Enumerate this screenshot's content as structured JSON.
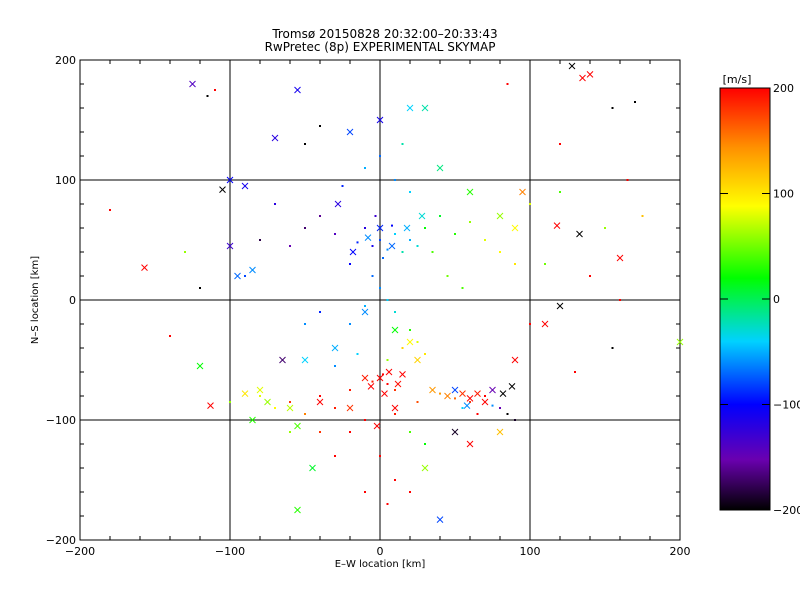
{
  "chart_data": {
    "type": "scatter",
    "title": "Tromsø 20150828 20:32:00–20:33:43",
    "subtitle": "RwPretec (8p) EXPERIMENTAL SKYMAP",
    "xlabel": "E–W location [km]",
    "ylabel": "N–S location [km]",
    "xlim": [
      -200,
      200
    ],
    "ylim": [
      -200,
      200
    ],
    "xticks": [
      "−200",
      "−100",
      "0",
      "100",
      "200"
    ],
    "yticks": [
      "200",
      "100",
      "0",
      "−100",
      "−200"
    ],
    "grid": true,
    "grid_lines": [
      -100,
      0,
      100
    ],
    "colorbar": {
      "label": "[m/s]",
      "range": [
        -200,
        200
      ],
      "ticks": [
        "200",
        "100",
        "0",
        "−100",
        "−200"
      ],
      "colormap": [
        "#000000",
        "#6a00b0",
        "#0000ff",
        "#00d2ff",
        "#00ff00",
        "#ffff00",
        "#ff9000",
        "#ff0000"
      ]
    },
    "markers": [
      "dot",
      "cross"
    ],
    "points": [
      {
        "x": 0,
        "y": 50,
        "v": -80,
        "m": "dot"
      },
      {
        "x": -5,
        "y": 45,
        "v": -110,
        "m": "dot"
      },
      {
        "x": 5,
        "y": 42,
        "v": -60,
        "m": "dot"
      },
      {
        "x": 10,
        "y": 55,
        "v": -40,
        "m": "dot"
      },
      {
        "x": -10,
        "y": 60,
        "v": -120,
        "m": "dot"
      },
      {
        "x": 15,
        "y": 40,
        "v": -20,
        "m": "dot"
      },
      {
        "x": 20,
        "y": 50,
        "v": -50,
        "m": "dot"
      },
      {
        "x": -15,
        "y": 48,
        "v": -90,
        "m": "dot"
      },
      {
        "x": 2,
        "y": 35,
        "v": -70,
        "m": "dot"
      },
      {
        "x": 8,
        "y": 62,
        "v": -100,
        "m": "dot"
      },
      {
        "x": -3,
        "y": 70,
        "v": -130,
        "m": "dot"
      },
      {
        "x": 25,
        "y": 45,
        "v": -30,
        "m": "dot"
      },
      {
        "x": 30,
        "y": 60,
        "v": 20,
        "m": "dot"
      },
      {
        "x": 35,
        "y": 40,
        "v": 40,
        "m": "dot"
      },
      {
        "x": -20,
        "y": 30,
        "v": -100,
        "m": "dot"
      },
      {
        "x": -30,
        "y": 55,
        "v": -140,
        "m": "dot"
      },
      {
        "x": -40,
        "y": 70,
        "v": -160,
        "m": "dot"
      },
      {
        "x": -50,
        "y": 60,
        "v": -170,
        "m": "dot"
      },
      {
        "x": -60,
        "y": 45,
        "v": -150,
        "m": "dot"
      },
      {
        "x": -70,
        "y": 80,
        "v": -120,
        "m": "dot"
      },
      {
        "x": -80,
        "y": 50,
        "v": -180,
        "m": "dot"
      },
      {
        "x": -90,
        "y": 20,
        "v": -80,
        "m": "dot"
      },
      {
        "x": 40,
        "y": 70,
        "v": 10,
        "m": "dot"
      },
      {
        "x": 50,
        "y": 55,
        "v": 30,
        "m": "dot"
      },
      {
        "x": 60,
        "y": 65,
        "v": 60,
        "m": "dot"
      },
      {
        "x": 70,
        "y": 50,
        "v": 80,
        "m": "dot"
      },
      {
        "x": 80,
        "y": 40,
        "v": 90,
        "m": "dot"
      },
      {
        "x": 90,
        "y": 30,
        "v": 100,
        "m": "dot"
      },
      {
        "x": 45,
        "y": 20,
        "v": 50,
        "m": "dot"
      },
      {
        "x": 55,
        "y": 10,
        "v": 40,
        "m": "dot"
      },
      {
        "x": 10,
        "y": 100,
        "v": -60,
        "m": "dot"
      },
      {
        "x": 0,
        "y": 120,
        "v": -70,
        "m": "dot"
      },
      {
        "x": -10,
        "y": 110,
        "v": -50,
        "m": "dot"
      },
      {
        "x": 20,
        "y": 90,
        "v": -40,
        "m": "dot"
      },
      {
        "x": -25,
        "y": 95,
        "v": -90,
        "m": "dot"
      },
      {
        "x": 15,
        "y": 130,
        "v": -20,
        "m": "dot"
      },
      {
        "x": -5,
        "y": 20,
        "v": -70,
        "m": "dot"
      },
      {
        "x": 0,
        "y": 10,
        "v": -60,
        "m": "dot"
      },
      {
        "x": 5,
        "y": 0,
        "v": -40,
        "m": "dot"
      },
      {
        "x": -10,
        "y": -5,
        "v": -50,
        "m": "dot"
      },
      {
        "x": 10,
        "y": -10,
        "v": -30,
        "m": "dot"
      },
      {
        "x": -20,
        "y": -20,
        "v": -60,
        "m": "dot"
      },
      {
        "x": 20,
        "y": -25,
        "v": 30,
        "m": "dot"
      },
      {
        "x": 25,
        "y": -35,
        "v": 80,
        "m": "dot"
      },
      {
        "x": 15,
        "y": -40,
        "v": 110,
        "m": "dot"
      },
      {
        "x": 30,
        "y": -45,
        "v": 100,
        "m": "dot"
      },
      {
        "x": 5,
        "y": -50,
        "v": 60,
        "m": "dot"
      },
      {
        "x": -15,
        "y": -45,
        "v": -40,
        "m": "dot"
      },
      {
        "x": -30,
        "y": -55,
        "v": -60,
        "m": "dot"
      },
      {
        "x": -40,
        "y": -10,
        "v": -90,
        "m": "dot"
      },
      {
        "x": -50,
        "y": -20,
        "v": -60,
        "m": "dot"
      },
      {
        "x": 0,
        "y": -65,
        "v": 190,
        "m": "dot"
      },
      {
        "x": 5,
        "y": -70,
        "v": 200,
        "m": "dot"
      },
      {
        "x": -5,
        "y": -68,
        "v": 190,
        "m": "dot"
      },
      {
        "x": 10,
        "y": -75,
        "v": 180,
        "m": "dot"
      },
      {
        "x": 2,
        "y": -62,
        "v": 200,
        "m": "dot"
      },
      {
        "x": -20,
        "y": -75,
        "v": 190,
        "m": "dot"
      },
      {
        "x": -40,
        "y": -80,
        "v": 200,
        "m": "dot"
      },
      {
        "x": -60,
        "y": -85,
        "v": 180,
        "m": "dot"
      },
      {
        "x": -80,
        "y": -80,
        "v": 80,
        "m": "dot"
      },
      {
        "x": -100,
        "y": -85,
        "v": 60,
        "m": "dot"
      },
      {
        "x": -70,
        "y": -90,
        "v": 90,
        "m": "dot"
      },
      {
        "x": -50,
        "y": -95,
        "v": 150,
        "m": "dot"
      },
      {
        "x": -30,
        "y": -90,
        "v": 190,
        "m": "dot"
      },
      {
        "x": -10,
        "y": -100,
        "v": 200,
        "m": "dot"
      },
      {
        "x": 10,
        "y": -95,
        "v": 190,
        "m": "dot"
      },
      {
        "x": 25,
        "y": -85,
        "v": 170,
        "m": "dot"
      },
      {
        "x": 40,
        "y": -78,
        "v": 140,
        "m": "dot"
      },
      {
        "x": 50,
        "y": -82,
        "v": 160,
        "m": "dot"
      },
      {
        "x": 60,
        "y": -85,
        "v": 180,
        "m": "dot"
      },
      {
        "x": 70,
        "y": -80,
        "v": 200,
        "m": "dot"
      },
      {
        "x": 75,
        "y": -88,
        "v": -60,
        "m": "dot"
      },
      {
        "x": 80,
        "y": -90,
        "v": -150,
        "m": "dot"
      },
      {
        "x": 85,
        "y": -95,
        "v": -200,
        "m": "dot"
      },
      {
        "x": 90,
        "y": -100,
        "v": -190,
        "m": "dot"
      },
      {
        "x": 65,
        "y": -95,
        "v": 200,
        "m": "dot"
      },
      {
        "x": 55,
        "y": -90,
        "v": -40,
        "m": "dot"
      },
      {
        "x": -20,
        "y": -110,
        "v": 200,
        "m": "dot"
      },
      {
        "x": -40,
        "y": -110,
        "v": 180,
        "m": "dot"
      },
      {
        "x": -60,
        "y": -110,
        "v": 60,
        "m": "dot"
      },
      {
        "x": 20,
        "y": -110,
        "v": 40,
        "m": "dot"
      },
      {
        "x": 30,
        "y": -120,
        "v": 20,
        "m": "dot"
      },
      {
        "x": 0,
        "y": -130,
        "v": 200,
        "m": "dot"
      },
      {
        "x": -30,
        "y": -130,
        "v": 200,
        "m": "dot"
      },
      {
        "x": 10,
        "y": -150,
        "v": 200,
        "m": "dot"
      },
      {
        "x": 5,
        "y": -170,
        "v": 200,
        "m": "dot"
      },
      {
        "x": 20,
        "y": -160,
        "v": 200,
        "m": "dot"
      },
      {
        "x": -10,
        "y": -160,
        "v": 200,
        "m": "dot"
      },
      {
        "x": -120,
        "y": 10,
        "v": -200,
        "m": "dot"
      },
      {
        "x": -140,
        "y": -30,
        "v": 200,
        "m": "dot"
      },
      {
        "x": -130,
        "y": 40,
        "v": 60,
        "m": "dot"
      },
      {
        "x": -180,
        "y": 75,
        "v": 200,
        "m": "dot"
      },
      {
        "x": -110,
        "y": 175,
        "v": 200,
        "m": "dot"
      },
      {
        "x": -115,
        "y": 170,
        "v": -200,
        "m": "dot"
      },
      {
        "x": -50,
        "y": 130,
        "v": -200,
        "m": "dot"
      },
      {
        "x": -40,
        "y": 145,
        "v": -200,
        "m": "dot"
      },
      {
        "x": 100,
        "y": 80,
        "v": 80,
        "m": "dot"
      },
      {
        "x": 110,
        "y": 30,
        "v": 50,
        "m": "dot"
      },
      {
        "x": 120,
        "y": 90,
        "v": 40,
        "m": "dot"
      },
      {
        "x": 150,
        "y": 60,
        "v": 60,
        "m": "dot"
      },
      {
        "x": 155,
        "y": 160,
        "v": -200,
        "m": "dot"
      },
      {
        "x": 170,
        "y": 165,
        "v": -200,
        "m": "dot"
      },
      {
        "x": 140,
        "y": 20,
        "v": 200,
        "m": "dot"
      },
      {
        "x": 165,
        "y": 100,
        "v": 200,
        "m": "dot"
      },
      {
        "x": 175,
        "y": 70,
        "v": 120,
        "m": "dot"
      },
      {
        "x": 160,
        "y": 0,
        "v": 200,
        "m": "dot"
      },
      {
        "x": 155,
        "y": -40,
        "v": -200,
        "m": "dot"
      },
      {
        "x": 130,
        "y": -60,
        "v": 200,
        "m": "dot"
      },
      {
        "x": 100,
        "y": -20,
        "v": 200,
        "m": "dot"
      },
      {
        "x": 120,
        "y": 130,
        "v": 200,
        "m": "dot"
      },
      {
        "x": 85,
        "y": 180,
        "v": 200,
        "m": "dot"
      },
      {
        "x": 0,
        "y": 60,
        "v": -90,
        "m": "cross"
      },
      {
        "x": 8,
        "y": 45,
        "v": -70,
        "m": "cross"
      },
      {
        "x": -8,
        "y": 52,
        "v": -60,
        "m": "cross"
      },
      {
        "x": 18,
        "y": 60,
        "v": -50,
        "m": "cross"
      },
      {
        "x": -18,
        "y": 40,
        "v": -100,
        "m": "cross"
      },
      {
        "x": 28,
        "y": 70,
        "v": -30,
        "m": "cross"
      },
      {
        "x": -28,
        "y": 80,
        "v": -120,
        "m": "cross"
      },
      {
        "x": 0,
        "y": 150,
        "v": -110,
        "m": "cross"
      },
      {
        "x": -20,
        "y": 140,
        "v": -80,
        "m": "cross"
      },
      {
        "x": 20,
        "y": 160,
        "v": -40,
        "m": "cross"
      },
      {
        "x": -70,
        "y": 135,
        "v": -120,
        "m": "cross"
      },
      {
        "x": -90,
        "y": 95,
        "v": -110,
        "m": "cross"
      },
      {
        "x": -100,
        "y": 45,
        "v": -130,
        "m": "cross"
      },
      {
        "x": -95,
        "y": 20,
        "v": -70,
        "m": "cross"
      },
      {
        "x": -85,
        "y": 25,
        "v": -60,
        "m": "cross"
      },
      {
        "x": -125,
        "y": 180,
        "v": -140,
        "m": "cross"
      },
      {
        "x": -55,
        "y": 175,
        "v": -110,
        "m": "cross"
      },
      {
        "x": 30,
        "y": 160,
        "v": -20,
        "m": "cross"
      },
      {
        "x": 40,
        "y": 110,
        "v": -10,
        "m": "cross"
      },
      {
        "x": 60,
        "y": 90,
        "v": 30,
        "m": "cross"
      },
      {
        "x": 80,
        "y": 70,
        "v": 60,
        "m": "cross"
      },
      {
        "x": 90,
        "y": 60,
        "v": 90,
        "m": "cross"
      },
      {
        "x": -10,
        "y": -10,
        "v": -60,
        "m": "cross"
      },
      {
        "x": 10,
        "y": -25,
        "v": 20,
        "m": "cross"
      },
      {
        "x": 20,
        "y": -35,
        "v": 90,
        "m": "cross"
      },
      {
        "x": 25,
        "y": -50,
        "v": 110,
        "m": "cross"
      },
      {
        "x": -30,
        "y": -40,
        "v": -50,
        "m": "cross"
      },
      {
        "x": -50,
        "y": -50,
        "v": -40,
        "m": "cross"
      },
      {
        "x": -65,
        "y": -50,
        "v": -170,
        "m": "cross"
      },
      {
        "x": 0,
        "y": -65,
        "v": 200,
        "m": "cross"
      },
      {
        "x": 6,
        "y": -60,
        "v": 200,
        "m": "cross"
      },
      {
        "x": -6,
        "y": -72,
        "v": 200,
        "m": "cross"
      },
      {
        "x": 12,
        "y": -70,
        "v": 195,
        "m": "cross"
      },
      {
        "x": 3,
        "y": -78,
        "v": 200,
        "m": "cross"
      },
      {
        "x": -10,
        "y": -65,
        "v": 190,
        "m": "cross"
      },
      {
        "x": 15,
        "y": -62,
        "v": 200,
        "m": "cross"
      },
      {
        "x": 35,
        "y": -75,
        "v": 140,
        "m": "cross"
      },
      {
        "x": 45,
        "y": -80,
        "v": 150,
        "m": "cross"
      },
      {
        "x": 55,
        "y": -78,
        "v": 180,
        "m": "cross"
      },
      {
        "x": 60,
        "y": -82,
        "v": 200,
        "m": "cross"
      },
      {
        "x": 65,
        "y": -78,
        "v": 190,
        "m": "cross"
      },
      {
        "x": 70,
        "y": -85,
        "v": 200,
        "m": "cross"
      },
      {
        "x": 50,
        "y": -75,
        "v": -80,
        "m": "cross"
      },
      {
        "x": 58,
        "y": -88,
        "v": -60,
        "m": "cross"
      },
      {
        "x": 75,
        "y": -75,
        "v": -150,
        "m": "cross"
      },
      {
        "x": 82,
        "y": -78,
        "v": -200,
        "m": "cross"
      },
      {
        "x": 88,
        "y": -72,
        "v": -200,
        "m": "cross"
      },
      {
        "x": -80,
        "y": -75,
        "v": 80,
        "m": "cross"
      },
      {
        "x": -90,
        "y": -78,
        "v": 100,
        "m": "cross"
      },
      {
        "x": -75,
        "y": -85,
        "v": 60,
        "m": "cross"
      },
      {
        "x": -60,
        "y": -90,
        "v": 70,
        "m": "cross"
      },
      {
        "x": -40,
        "y": -85,
        "v": 200,
        "m": "cross"
      },
      {
        "x": -20,
        "y": -90,
        "v": 180,
        "m": "cross"
      },
      {
        "x": -2,
        "y": -105,
        "v": 200,
        "m": "cross"
      },
      {
        "x": 10,
        "y": -90,
        "v": 200,
        "m": "cross"
      },
      {
        "x": -55,
        "y": -105,
        "v": 40,
        "m": "cross"
      },
      {
        "x": -85,
        "y": -100,
        "v": 30,
        "m": "cross"
      },
      {
        "x": -45,
        "y": -140,
        "v": 10,
        "m": "cross"
      },
      {
        "x": -55,
        "y": -175,
        "v": 30,
        "m": "cross"
      },
      {
        "x": 40,
        "y": -183,
        "v": -80,
        "m": "cross"
      },
      {
        "x": 30,
        "y": -140,
        "v": 60,
        "m": "cross"
      },
      {
        "x": 50,
        "y": -110,
        "v": -190,
        "m": "cross"
      },
      {
        "x": 60,
        "y": -120,
        "v": 200,
        "m": "cross"
      },
      {
        "x": 80,
        "y": -110,
        "v": 120,
        "m": "cross"
      },
      {
        "x": 90,
        "y": -50,
        "v": 200,
        "m": "cross"
      },
      {
        "x": 110,
        "y": -20,
        "v": 200,
        "m": "cross"
      },
      {
        "x": 120,
        "y": -5,
        "v": -200,
        "m": "cross"
      },
      {
        "x": 133,
        "y": 55,
        "v": -200,
        "m": "cross"
      },
      {
        "x": 135,
        "y": 185,
        "v": 200,
        "m": "cross"
      },
      {
        "x": 140,
        "y": 188,
        "v": 200,
        "m": "cross"
      },
      {
        "x": 128,
        "y": 195,
        "v": -200,
        "m": "cross"
      },
      {
        "x": 160,
        "y": 35,
        "v": 200,
        "m": "cross"
      },
      {
        "x": 200,
        "y": -35,
        "v": 60,
        "m": "cross"
      },
      {
        "x": -157,
        "y": 27,
        "v": 200,
        "m": "cross"
      },
      {
        "x": -113,
        "y": -88,
        "v": 200,
        "m": "cross"
      },
      {
        "x": -120,
        "y": -55,
        "v": 20,
        "m": "cross"
      },
      {
        "x": -105,
        "y": 92,
        "v": -200,
        "m": "cross"
      },
      {
        "x": -100,
        "y": 100,
        "v": -100,
        "m": "cross"
      },
      {
        "x": 118,
        "y": 62,
        "v": 200,
        "m": "cross"
      },
      {
        "x": 95,
        "y": 90,
        "v": 150,
        "m": "cross"
      }
    ]
  }
}
